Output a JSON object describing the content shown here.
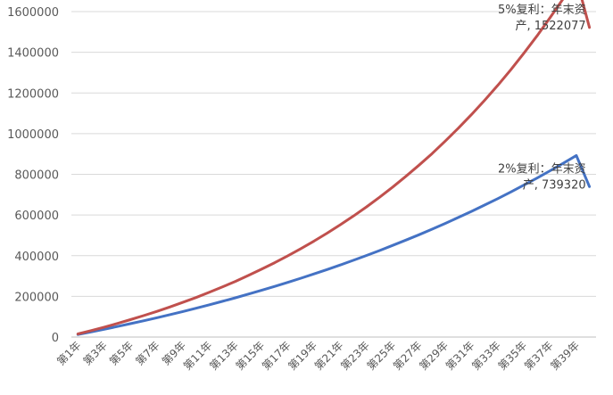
{
  "chart_data": {
    "type": "line",
    "title": "",
    "xlabel": "",
    "ylabel": "",
    "ylim": [
      0,
      1600000
    ],
    "yticks": [
      0,
      200000,
      400000,
      600000,
      800000,
      1000000,
      1200000,
      1400000,
      1600000
    ],
    "ytick_labels": [
      "0",
      "200000",
      "400000",
      "600000",
      "800000",
      "1000000",
      "1200000",
      "1400000",
      "1600000"
    ],
    "grid": "horizontal",
    "legend": "none",
    "categories": [
      "第1年",
      "第2年",
      "第3年",
      "第4年",
      "第5年",
      "第6年",
      "第7年",
      "第8年",
      "第9年",
      "第10年",
      "第11年",
      "第12年",
      "第13年",
      "第14年",
      "第15年",
      "第16年",
      "第17年",
      "第18年",
      "第19年",
      "第20年",
      "第21年",
      "第22年",
      "第23年",
      "第24年",
      "第25年",
      "第26年",
      "第27年",
      "第28年",
      "第29年",
      "第30年",
      "第31年",
      "第32年",
      "第33年",
      "第34年",
      "第35年",
      "第36年",
      "第37年",
      "第38年",
      "第39年",
      "第40年"
    ],
    "xtick_labels": [
      "第1年",
      "第3年",
      "第5年",
      "第7年",
      "第9年",
      "第11年",
      "第13年",
      "第15年",
      "第17年",
      "第19年",
      "第21年",
      "第23年",
      "第25年",
      "第27年",
      "第29年",
      "第31年",
      "第33年",
      "第35年",
      "第37年",
      "第39年"
    ],
    "series": [
      {
        "color": "#4472c4",
        "values": [
          12360,
          25088,
          38195,
          51696,
          65601,
          79924,
          94676,
          109870,
          125522,
          141643,
          158248,
          175351,
          192967,
          211112,
          229801,
          249050,
          268876,
          289298,
          310331,
          331996,
          354312,
          377294,
          400965,
          425346,
          450458,
          476324,
          502966,
          530405,
          558668,
          587778,
          617762,
          648644,
          680452,
          713216,
          746962,
          781721,
          817522,
          854398,
          892380,
          739320
        ],
        "label_name": "2%复利：年末资",
        "label_value": "产, 739320"
      },
      {
        "color": "#c0504d",
        "values": [
          15450,
          31673,
          48706,
          66592,
          85372,
          105090,
          125795,
          147535,
          170361,
          194330,
          219496,
          245921,
          273667,
          302800,
          333391,
          365510,
          399236,
          434647,
          471830,
          510871,
          551865,
          594909,
          640104,
          687559,
          737387,
          789707,
          844642,
          902324,
          962891,
          1026485,
          1093260,
          1163373,
          1236991,
          1314291,
          1395456,
          1480679,
          1570163,
          1664121,
          1762777,
          1522077
        ],
        "label_name": "5%复利：年末资",
        "label_value": "产, 1522077"
      }
    ]
  }
}
